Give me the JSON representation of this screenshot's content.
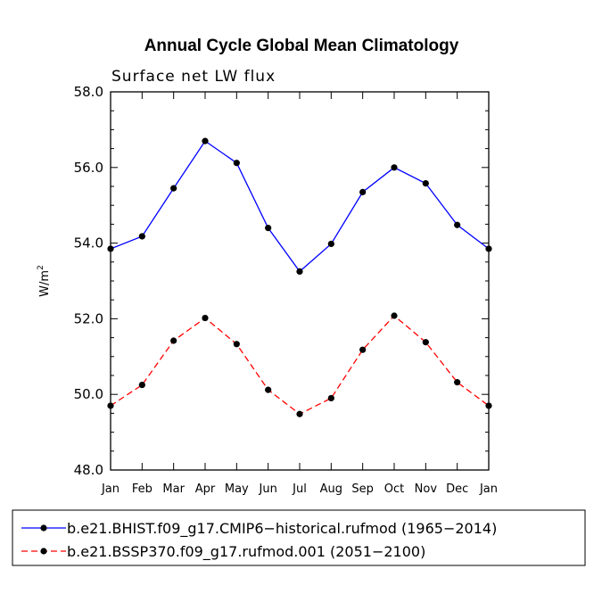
{
  "chart_data": {
    "type": "line",
    "title": "Annual Cycle Global Mean Climatology",
    "subtitle": "Surface net LW flux",
    "xlabel": "",
    "ylabel": "W/m",
    "ylabel_superscript": "2",
    "categories": [
      "Jan",
      "Feb",
      "Mar",
      "Apr",
      "May",
      "Jun",
      "Jul",
      "Aug",
      "Sep",
      "Oct",
      "Nov",
      "Dec",
      "Jan"
    ],
    "ylim": [
      48.0,
      58.0
    ],
    "yticks": [
      "48.0",
      "50.0",
      "52.0",
      "54.0",
      "56.0",
      "58.0"
    ],
    "grid": false,
    "legend_position": "bottom",
    "series": [
      {
        "name": "b.e21.BHIST.f09_g17.CMIP6-historical.rufmod (1965-2014)",
        "legend_label": "b.e21.BHIST.f09_g17.CMIP6−historical.rufmod (1965−2014)",
        "color": "#0000ff",
        "dash": "solid",
        "values": [
          53.85,
          54.18,
          55.45,
          56.7,
          56.12,
          54.4,
          53.25,
          53.98,
          55.35,
          56.0,
          55.58,
          54.48,
          53.85
        ]
      },
      {
        "name": "b.e21.BSSP370.f09_g17.rufmod.001 (2051-2100)",
        "legend_label": "b.e21.BSSP370.f09_g17.rufmod.001 (2051−2100)",
        "color": "#ff0000",
        "dash": "dashed",
        "values": [
          49.7,
          50.25,
          51.42,
          52.02,
          51.33,
          50.12,
          49.48,
          49.9,
          51.18,
          52.08,
          51.38,
          50.32,
          49.7
        ]
      }
    ]
  }
}
